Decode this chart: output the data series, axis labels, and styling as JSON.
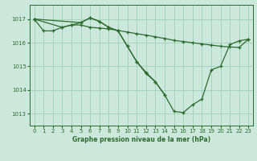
{
  "title": "Graphe pression niveau de la mer (hPa)",
  "background_color": "#cce8dc",
  "grid_color": "#99ccb3",
  "line_color": "#2d6b2d",
  "xlim": [
    -0.5,
    23.5
  ],
  "ylim": [
    1012.5,
    1017.6
  ],
  "xticks": [
    0,
    1,
    2,
    3,
    4,
    5,
    6,
    7,
    8,
    9,
    10,
    11,
    12,
    13,
    14,
    15,
    16,
    17,
    18,
    19,
    20,
    21,
    22,
    23
  ],
  "yticks": [
    1013,
    1014,
    1015,
    1016,
    1017
  ],
  "series1_x": [
    0,
    1,
    2,
    3,
    4,
    5,
    6,
    7,
    8,
    9,
    10,
    11,
    12,
    13,
    14,
    15,
    16,
    17,
    18,
    19,
    20,
    21,
    22,
    23
  ],
  "series1_y": [
    1017.0,
    1016.5,
    1016.5,
    1016.65,
    1016.75,
    1016.75,
    1016.65,
    1016.62,
    1016.58,
    1016.52,
    1016.45,
    1016.38,
    1016.32,
    1016.25,
    1016.18,
    1016.1,
    1016.05,
    1016.0,
    1015.95,
    1015.9,
    1015.85,
    1015.82,
    1015.8,
    1016.15
  ],
  "series2_x": [
    0,
    3,
    4,
    5,
    6,
    7,
    8,
    9,
    10,
    11,
    12,
    13,
    14
  ],
  "series2_y": [
    1017.0,
    1016.65,
    1016.75,
    1016.85,
    1017.05,
    1016.9,
    1016.65,
    1016.5,
    1015.85,
    1015.2,
    1014.75,
    1014.35,
    1013.8
  ],
  "series3_x": [
    0,
    5,
    6,
    7,
    8,
    9,
    10,
    11,
    12,
    13,
    14,
    15,
    16,
    17,
    18,
    19,
    20,
    21,
    22,
    23
  ],
  "series3_y": [
    1017.0,
    1016.85,
    1017.05,
    1016.9,
    1016.65,
    1016.5,
    1015.85,
    1015.2,
    1014.7,
    1014.35,
    1013.8,
    1013.1,
    1013.05,
    1013.38,
    1013.62,
    1014.85,
    1015.0,
    1015.92,
    1016.08,
    1016.15
  ]
}
